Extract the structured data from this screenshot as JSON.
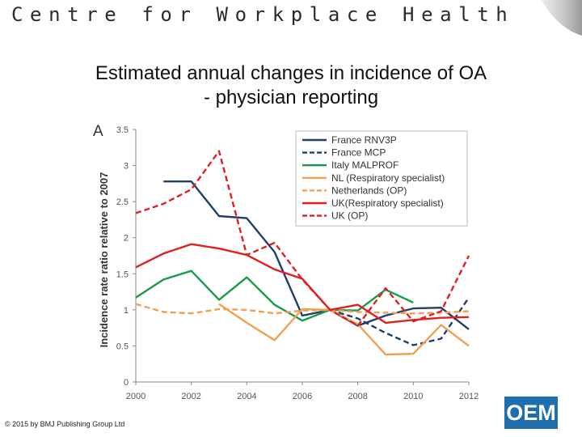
{
  "header": {
    "title": "Centre for Workplace Health"
  },
  "slide": {
    "title_line1": "Estimated annual changes in incidence of OA",
    "title_line2": "- physician reporting",
    "copyright": "© 2015 by BMJ Publishing Group Ltd",
    "logo_text": "OEM"
  },
  "chart_data": {
    "type": "line",
    "panel_label": "A",
    "xlabel": "",
    "ylabel": "Incidence rate ratio relative to 2007",
    "xlim": [
      2000,
      2012
    ],
    "ylim": [
      0,
      3.5
    ],
    "x_ticks": [
      2000,
      2002,
      2004,
      2006,
      2008,
      2010,
      2012
    ],
    "y_ticks": [
      0,
      0.5,
      1,
      1.5,
      2,
      2.5,
      3,
      3.5
    ],
    "grid": false,
    "legend_position": "top-right",
    "series": [
      {
        "name": "France RNV3P",
        "color": "#1f3f6e",
        "dash": "solid",
        "x": [
          2001,
          2002,
          2003,
          2004,
          2005,
          2006,
          2007,
          2008,
          2009,
          2010,
          2011,
          2012
        ],
        "y": [
          2.78,
          2.78,
          2.3,
          2.27,
          1.8,
          0.92,
          1.0,
          0.78,
          0.92,
          1.02,
          1.03,
          0.73
        ]
      },
      {
        "name": "France MCP",
        "color": "#1f3f6e",
        "dash": "dashed",
        "x": [
          2007,
          2008,
          2009,
          2010,
          2011,
          2012
        ],
        "y": [
          1.0,
          0.88,
          0.68,
          0.51,
          0.6,
          1.17
        ]
      },
      {
        "name": "Italy MALPROF",
        "color": "#1a9a4a",
        "dash": "solid",
        "x": [
          2000,
          2001,
          2002,
          2003,
          2004,
          2005,
          2006,
          2007,
          2008,
          2009,
          2010
        ],
        "y": [
          1.17,
          1.42,
          1.54,
          1.14,
          1.45,
          1.07,
          0.85,
          1.0,
          0.99,
          1.28,
          1.1
        ]
      },
      {
        "name": "NL (Respiratory specialist)",
        "color": "#f0a050",
        "dash": "solid",
        "x": [
          2003,
          2004,
          2005,
          2006,
          2007,
          2008,
          2009,
          2010,
          2011,
          2012
        ],
        "y": [
          1.08,
          0.82,
          0.58,
          1.01,
          1.0,
          0.8,
          0.38,
          0.39,
          0.79,
          0.5
        ]
      },
      {
        "name": "Netherlands (OP)",
        "color": "#f0a050",
        "dash": "dashed",
        "x": [
          2000,
          2001,
          2002,
          2003,
          2004,
          2005,
          2006,
          2007,
          2008,
          2009,
          2010,
          2011,
          2012
        ],
        "y": [
          1.08,
          0.97,
          0.95,
          1.01,
          1.0,
          0.95,
          0.99,
          1.0,
          0.97,
          0.96,
          0.95,
          0.96,
          0.98
        ]
      },
      {
        "name": "UK(Respiratory specialist)",
        "color": "#e02020",
        "dash": "solid",
        "x": [
          2000,
          2001,
          2002,
          2003,
          2004,
          2005,
          2006,
          2007,
          2008,
          2009,
          2010,
          2011,
          2012
        ],
        "y": [
          1.59,
          1.78,
          1.91,
          1.85,
          1.76,
          1.56,
          1.43,
          1.0,
          1.07,
          0.82,
          0.86,
          0.89,
          0.9
        ]
      },
      {
        "name": "UK (OP)",
        "color": "#e02020",
        "dash": "dashed",
        "x": [
          2000,
          2001,
          2002,
          2003,
          2004,
          2005,
          2006,
          2007,
          2008,
          2009,
          2010,
          2011,
          2012
        ],
        "y": [
          2.34,
          2.47,
          2.67,
          3.2,
          1.76,
          1.93,
          1.42,
          1.0,
          0.78,
          1.3,
          0.84,
          0.98,
          1.75
        ]
      }
    ]
  }
}
